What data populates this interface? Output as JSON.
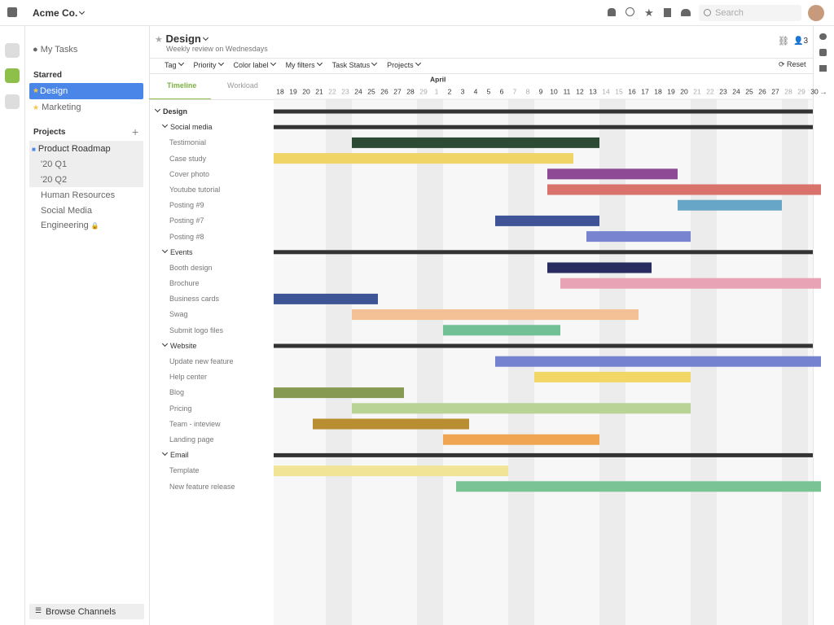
{
  "top_bar": {
    "workspace": "Acme Co.",
    "search_placeholder": "Search"
  },
  "sidebar": {
    "my_tasks": "My Tasks",
    "starred_heading": "Starred",
    "starred": [
      "Design",
      "Marketing"
    ],
    "projects_heading": "Projects",
    "projects": [
      {
        "name": "Product Roadmap",
        "children": [
          "'20 Q1",
          "'20 Q2"
        ]
      },
      {
        "name": "Human Resources"
      },
      {
        "name": "Social Media"
      },
      {
        "name": "Engineering"
      }
    ],
    "browse": "Browse Channels"
  },
  "header": {
    "title": "Design",
    "subtitle": "Weekly review on Wednesdays",
    "members": 3
  },
  "filters": [
    "Tag",
    "Priority",
    "Color label",
    "My filters",
    "Task Status",
    "Projects"
  ],
  "reset": "Reset",
  "tabs": [
    "Timeline",
    "Workload"
  ],
  "timeline": {
    "month": "April",
    "days": [
      18,
      19,
      20,
      21,
      22,
      23,
      24,
      25,
      26,
      27,
      28,
      29,
      1,
      2,
      3,
      4,
      5,
      6,
      7,
      8,
      9,
      10,
      11,
      12,
      13,
      14,
      15,
      16,
      17,
      18,
      19,
      20,
      21,
      22,
      23,
      24,
      25,
      26,
      27,
      28,
      29,
      30
    ]
  },
  "project": {
    "name": "Design",
    "groups": [
      {
        "name": "Social media",
        "tasks": [
          "Testimonial",
          "Case study",
          "Cover photo",
          "Youtube tutorial",
          "Posting #9",
          "Posting #7",
          "Posting #8"
        ]
      },
      {
        "name": "Events",
        "tasks": [
          "Booth design",
          "Brochure",
          "Business cards",
          "Swag",
          "Submit logo files"
        ]
      },
      {
        "name": "Website",
        "tasks": [
          "Update new feature",
          "Help center",
          "Blog",
          "Pricing",
          "Team - inteview",
          "Landing page"
        ]
      },
      {
        "name": "Email",
        "tasks": [
          "Template",
          "New feature release"
        ]
      }
    ]
  }
}
